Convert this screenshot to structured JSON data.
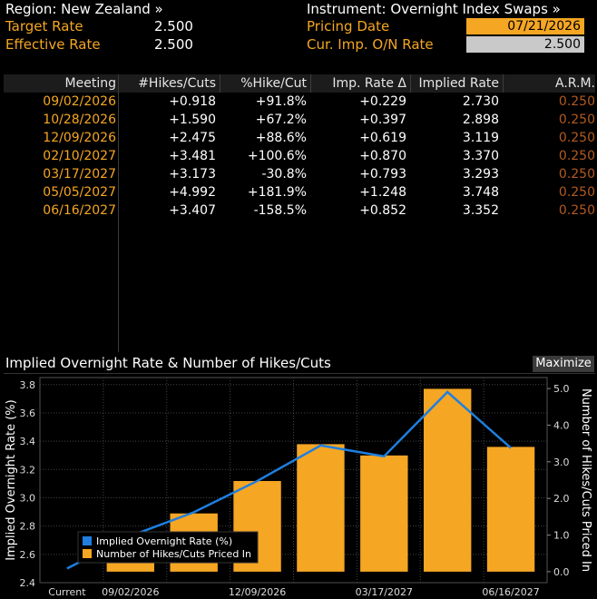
{
  "header": {
    "region": "Region: New Zealand »",
    "instrument": "Instrument: Overnight Index Swaps »",
    "target_rate_label": "Target Rate",
    "target_rate_value": "2.500",
    "effective_rate_label": "Effective Rate",
    "effective_rate_value": "2.500",
    "pricing_date_label": "Pricing Date",
    "pricing_date_value": "07/21/2026",
    "cur_imp_label": "Cur. Imp. O/N Rate",
    "cur_imp_value": "2.500"
  },
  "table": {
    "columns": [
      "Meeting",
      "#Hikes/Cuts",
      "%Hike/Cut",
      "Imp. Rate Δ",
      "Implied Rate",
      "A.R.M."
    ],
    "rows": [
      {
        "meeting": "09/02/2026",
        "hikes": "+0.918",
        "pct": "+91.8%",
        "delta": "+0.229",
        "implied": "2.730",
        "arm": "0.250"
      },
      {
        "meeting": "10/28/2026",
        "hikes": "+1.590",
        "pct": "+67.2%",
        "delta": "+0.397",
        "implied": "2.898",
        "arm": "0.250"
      },
      {
        "meeting": "12/09/2026",
        "hikes": "+2.475",
        "pct": "+88.6%",
        "delta": "+0.619",
        "implied": "3.119",
        "arm": "0.250"
      },
      {
        "meeting": "02/10/2027",
        "hikes": "+3.481",
        "pct": "+100.6%",
        "delta": "+0.870",
        "implied": "3.370",
        "arm": "0.250"
      },
      {
        "meeting": "03/17/2027",
        "hikes": "+3.173",
        "pct": "-30.8%",
        "delta": "+0.793",
        "implied": "3.293",
        "arm": "0.250"
      },
      {
        "meeting": "05/05/2027",
        "hikes": "+4.992",
        "pct": "+181.9%",
        "delta": "+1.248",
        "implied": "3.748",
        "arm": "0.250"
      },
      {
        "meeting": "06/16/2027",
        "hikes": "+3.407",
        "pct": "-158.5%",
        "delta": "+0.852",
        "implied": "3.352",
        "arm": "0.250"
      }
    ]
  },
  "chart_title": "Implied Overnight Rate & Number of Hikes/Cuts",
  "maximize_label": "Maximize",
  "colors": {
    "accent_orange": "#f5a623",
    "line_blue": "#1e7fe0",
    "arm_brown": "#b35a1f",
    "background": "#000000"
  },
  "chart_data": {
    "type": "bar",
    "categories": [
      "Current",
      "09/02/2026",
      "10/28/2026",
      "12/09/2026",
      "02/10/2027",
      "03/17/2027",
      "05/05/2027",
      "06/16/2027"
    ],
    "x_tick_labels": [
      "Current",
      "09/02/2026",
      "12/09/2026",
      "03/17/2027",
      "06/16/2027"
    ],
    "series": [
      {
        "name": "Implied Overnight Rate (%)",
        "type": "line",
        "axis": "left",
        "values": [
          2.5,
          2.73,
          2.898,
          3.119,
          3.37,
          3.293,
          3.748,
          3.352
        ]
      },
      {
        "name": "Number of Hikes/Cuts Priced In",
        "type": "bar",
        "axis": "right",
        "values": [
          null,
          0.918,
          1.59,
          2.475,
          3.481,
          3.173,
          4.992,
          3.407
        ]
      }
    ],
    "ylabel": "Implied Overnight Rate (%)",
    "y2label": "Number of Hikes/Cuts Priced In",
    "ylim": [
      2.4,
      3.85
    ],
    "y2lim": [
      -0.3,
      5.3
    ],
    "yticks": [
      "2.4",
      "2.6",
      "2.8",
      "3.0",
      "3.2",
      "3.4",
      "3.6",
      "3.8"
    ],
    "y2ticks": [
      "0.0",
      "1.0",
      "2.0",
      "3.0",
      "4.0",
      "5.0"
    ],
    "grid": true,
    "legend": "bottom-left"
  }
}
